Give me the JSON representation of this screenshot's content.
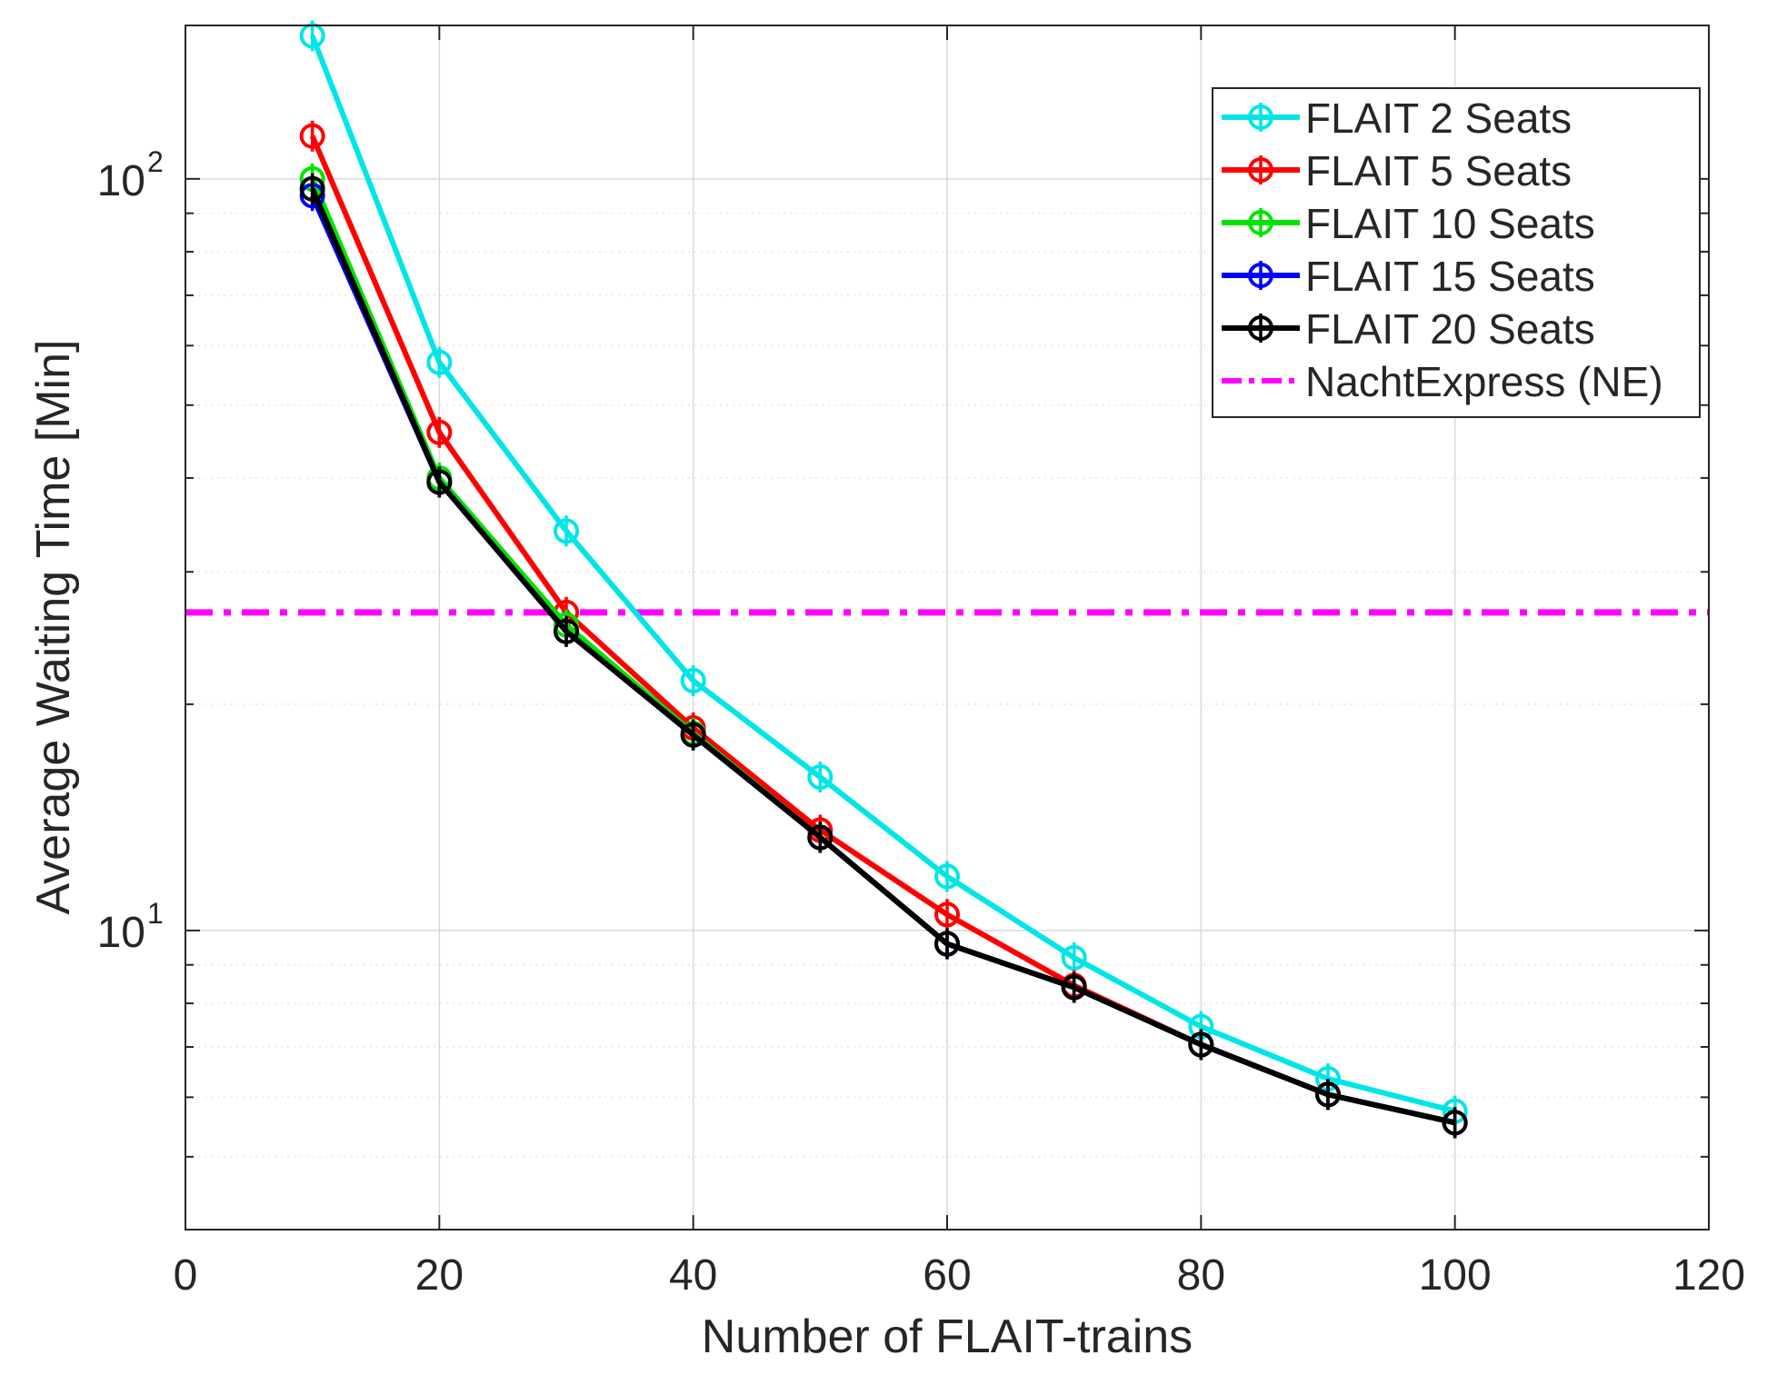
{
  "chart_data": {
    "type": "line",
    "title": "",
    "xlabel": "Number of FLAIT-trains",
    "ylabel": "Average Waiting Time [Min]",
    "xlim": [
      0,
      120
    ],
    "ylim": [
      4,
      160
    ],
    "yscale": "log",
    "grid": true,
    "x_ticks": [
      0,
      20,
      40,
      60,
      80,
      100,
      120
    ],
    "y_major_ticks": [
      {
        "base": "10",
        "exp": "1",
        "value": 10
      },
      {
        "base": "10",
        "exp": "2",
        "value": 100
      }
    ],
    "legend_position": "top-right",
    "x": [
      10,
      20,
      30,
      40,
      50,
      60,
      70,
      80,
      90,
      100
    ],
    "series": [
      {
        "name": "FLAIT 2 Seats",
        "color": "#00e5e5",
        "marker": "circle",
        "values": [
          155,
          57,
          34,
          21.5,
          16,
          11.8,
          9.2,
          7.45,
          6.35,
          5.75
        ]
      },
      {
        "name": "FLAIT 5 Seats",
        "color": "#ff0000",
        "marker": "circle",
        "values": [
          114,
          46,
          26.5,
          18.6,
          13.6,
          10.5,
          8.45,
          7.05,
          6.05,
          5.55
        ]
      },
      {
        "name": "FLAIT 10 Seats",
        "color": "#00e400",
        "marker": "circle",
        "values": [
          100,
          40,
          25.5,
          18.3,
          13.3,
          9.6,
          8.4,
          7.05,
          6.05,
          5.55
        ]
      },
      {
        "name": "FLAIT 15 Seats",
        "color": "#0000ff",
        "marker": "circle",
        "values": [
          95,
          39.5,
          25,
          18.2,
          13.3,
          9.6,
          8.4,
          7.05,
          6.05,
          5.55
        ]
      },
      {
        "name": "FLAIT 20 Seats",
        "color": "#000000",
        "marker": "circle",
        "values": [
          97,
          39.5,
          25,
          18.2,
          13.3,
          9.6,
          8.4,
          7.05,
          6.05,
          5.55
        ]
      }
    ],
    "reference_line": {
      "name": "NachtExpress (NE)",
      "color": "#ff00ff",
      "style": "dashdot",
      "value": 26.5
    }
  }
}
